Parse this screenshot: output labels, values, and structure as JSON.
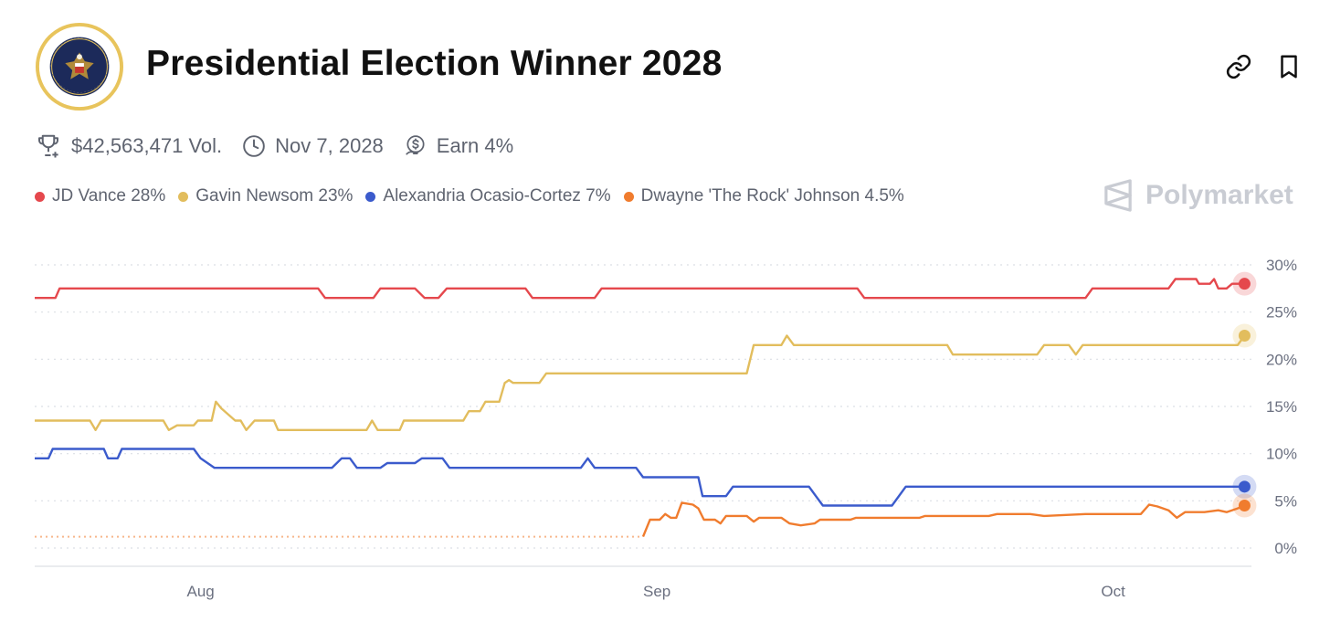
{
  "header": {
    "title": "Presidential Election Winner 2028",
    "seal_icon": "presidential-seal-icon",
    "link_icon": "link-icon",
    "bookmark_icon": "bookmark-icon"
  },
  "meta": {
    "volume": "$42,563,471 Vol.",
    "end_date": "Nov 7, 2028",
    "reward": "Earn 4%"
  },
  "brand": "Polymarket",
  "legend": [
    {
      "label": "JD Vance 28%",
      "color": "#e5484d"
    },
    {
      "label": "Gavin Newsom 23%",
      "color": "#e2bd5d"
    },
    {
      "label": "Alexandria Ocasio-Cortez 7%",
      "color": "#3b5bcc"
    },
    {
      "label": "Dwayne 'The Rock' Johnson 4.5%",
      "color": "#f07c2e"
    }
  ],
  "chart_data": {
    "type": "line",
    "x_ticks": [
      "Aug",
      "Sep",
      "Oct"
    ],
    "y_ticks": [
      "30%",
      "25%",
      "20%",
      "15%",
      "10%",
      "5%",
      "0%"
    ],
    "ylim": [
      0,
      30
    ],
    "xlim": [
      0,
      88
    ],
    "x_tick_days": [
      12,
      45,
      78
    ],
    "grid": true,
    "series": [
      {
        "name": "JD Vance",
        "color": "#e5484d",
        "last": 28,
        "points": [
          [
            0,
            26.5
          ],
          [
            1.5,
            26.5
          ],
          [
            1.8,
            27.5
          ],
          [
            20.5,
            27.5
          ],
          [
            21,
            26.5
          ],
          [
            24.5,
            26.5
          ],
          [
            25,
            27.5
          ],
          [
            27.5,
            27.5
          ],
          [
            28.2,
            26.5
          ],
          [
            29.2,
            26.5
          ],
          [
            29.8,
            27.5
          ],
          [
            35.5,
            27.5
          ],
          [
            36,
            26.5
          ],
          [
            40.5,
            26.5
          ],
          [
            41,
            27.5
          ],
          [
            59.5,
            27.5
          ],
          [
            60,
            26.5
          ],
          [
            76,
            26.5
          ],
          [
            76.5,
            27.5
          ],
          [
            82,
            27.5
          ],
          [
            82.5,
            28.5
          ],
          [
            84,
            28.5
          ],
          [
            84.2,
            28
          ],
          [
            85,
            28
          ],
          [
            85.3,
            28.5
          ],
          [
            85.6,
            27.5
          ],
          [
            86.2,
            27.5
          ],
          [
            86.6,
            28
          ],
          [
            87.5,
            28
          ]
        ]
      },
      {
        "name": "Gavin Newsom",
        "color": "#e2bd5d",
        "last": 22.5,
        "points": [
          [
            0,
            13.5
          ],
          [
            4,
            13.5
          ],
          [
            4.4,
            12.5
          ],
          [
            4.8,
            13.5
          ],
          [
            9.3,
            13.5
          ],
          [
            9.7,
            12.5
          ],
          [
            10.3,
            13
          ],
          [
            11.5,
            13
          ],
          [
            11.8,
            13.5
          ],
          [
            12.8,
            13.5
          ],
          [
            13.1,
            15.5
          ],
          [
            13.5,
            14.8
          ],
          [
            14.5,
            13.5
          ],
          [
            14.9,
            13.5
          ],
          [
            15.3,
            12.5
          ],
          [
            15.9,
            13.5
          ],
          [
            17.3,
            13.5
          ],
          [
            17.6,
            12.5
          ],
          [
            24,
            12.5
          ],
          [
            24.4,
            13.5
          ],
          [
            24.8,
            12.5
          ],
          [
            26.4,
            12.5
          ],
          [
            26.7,
            13.5
          ],
          [
            31,
            13.5
          ],
          [
            31.4,
            14.5
          ],
          [
            32.2,
            14.5
          ],
          [
            32.6,
            15.5
          ],
          [
            33.6,
            15.5
          ],
          [
            34,
            17.5
          ],
          [
            34.3,
            17.8
          ],
          [
            34.6,
            17.5
          ],
          [
            36.5,
            17.5
          ],
          [
            37,
            18.5
          ],
          [
            51.5,
            18.5
          ],
          [
            52,
            21.5
          ],
          [
            54,
            21.5
          ],
          [
            54.4,
            22.5
          ],
          [
            54.9,
            21.5
          ],
          [
            66,
            21.5
          ],
          [
            66.4,
            20.5
          ],
          [
            72.5,
            20.5
          ],
          [
            73,
            21.5
          ],
          [
            74.8,
            21.5
          ],
          [
            75.3,
            20.5
          ],
          [
            75.8,
            21.5
          ],
          [
            87,
            21.5
          ],
          [
            87.5,
            22.5
          ]
        ]
      },
      {
        "name": "Alexandria Ocasio-Cortez",
        "color": "#3b5bcc",
        "last": 6.5,
        "points": [
          [
            0,
            9.5
          ],
          [
            1,
            9.5
          ],
          [
            1.3,
            10.5
          ],
          [
            5,
            10.5
          ],
          [
            5.3,
            9.5
          ],
          [
            6,
            9.5
          ],
          [
            6.3,
            10.5
          ],
          [
            11.5,
            10.5
          ],
          [
            12,
            9.5
          ],
          [
            13,
            8.5
          ],
          [
            21.5,
            8.5
          ],
          [
            22.2,
            9.5
          ],
          [
            22.8,
            9.5
          ],
          [
            23.3,
            8.5
          ],
          [
            25,
            8.5
          ],
          [
            25.5,
            9
          ],
          [
            27.5,
            9
          ],
          [
            28,
            9.5
          ],
          [
            29.5,
            9.5
          ],
          [
            30,
            8.5
          ],
          [
            39.5,
            8.5
          ],
          [
            40,
            9.5
          ],
          [
            40.5,
            8.5
          ],
          [
            43.5,
            8.5
          ],
          [
            44,
            7.5
          ],
          [
            48,
            7.5
          ],
          [
            48.3,
            5.5
          ],
          [
            50,
            5.5
          ],
          [
            50.5,
            6.5
          ],
          [
            56,
            6.5
          ],
          [
            56.5,
            5.5
          ],
          [
            57,
            4.5
          ],
          [
            62,
            4.5
          ],
          [
            63,
            6.5
          ],
          [
            87.5,
            6.5
          ]
        ]
      },
      {
        "name": "Dwayne 'The Rock' Johnson",
        "color": "#f07c2e",
        "last": 4.5,
        "points": [
          [
            44,
            1.2
          ],
          [
            44.5,
            3
          ],
          [
            45.2,
            3
          ],
          [
            45.6,
            3.6
          ],
          [
            46,
            3.2
          ],
          [
            46.4,
            3.2
          ],
          [
            46.8,
            4.8
          ],
          [
            47.6,
            4.6
          ],
          [
            48,
            4.2
          ],
          [
            48.4,
            3
          ],
          [
            49.2,
            3
          ],
          [
            49.6,
            2.6
          ],
          [
            50,
            3.4
          ],
          [
            51.5,
            3.4
          ],
          [
            52,
            2.8
          ],
          [
            52.4,
            3.2
          ],
          [
            54,
            3.2
          ],
          [
            54.6,
            2.6
          ],
          [
            55.4,
            2.4
          ],
          [
            56.4,
            2.6
          ],
          [
            56.8,
            3
          ],
          [
            59,
            3
          ],
          [
            59.4,
            3.2
          ],
          [
            64,
            3.2
          ],
          [
            64.4,
            3.4
          ],
          [
            69,
            3.4
          ],
          [
            69.6,
            3.6
          ],
          [
            72,
            3.6
          ],
          [
            73,
            3.4
          ],
          [
            76,
            3.6
          ],
          [
            80,
            3.6
          ],
          [
            80.6,
            4.6
          ],
          [
            81.2,
            4.4
          ],
          [
            82,
            4
          ],
          [
            82.6,
            3.2
          ],
          [
            83.2,
            3.8
          ],
          [
            84.6,
            3.8
          ],
          [
            85.6,
            4
          ],
          [
            86.2,
            3.8
          ],
          [
            87,
            4.2
          ],
          [
            87.5,
            4.5
          ]
        ],
        "pre_points": [
          [
            0,
            1.2
          ],
          [
            44,
            1.2
          ]
        ]
      }
    ]
  }
}
